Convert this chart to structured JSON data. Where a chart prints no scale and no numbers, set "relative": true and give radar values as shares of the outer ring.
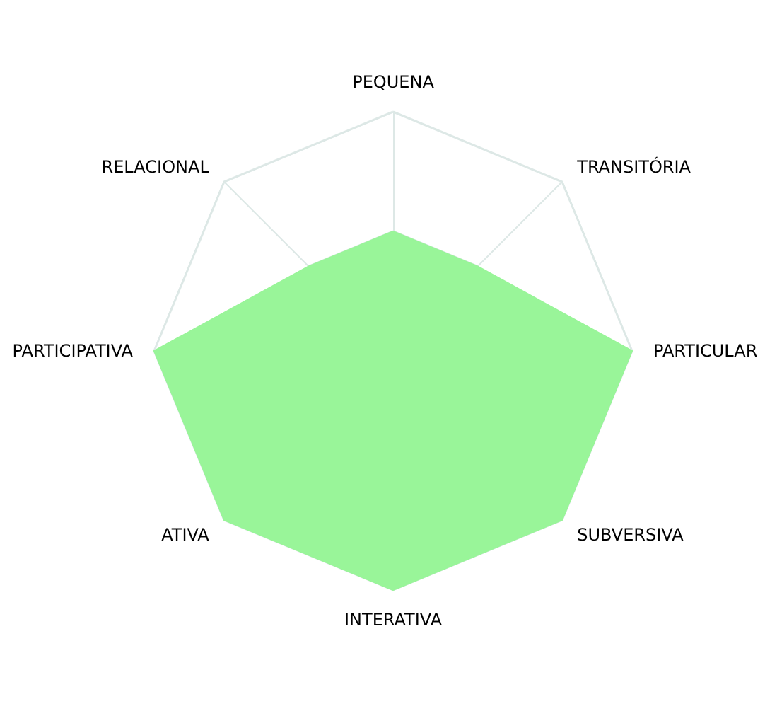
{
  "chart_data": {
    "type": "radar",
    "relative": true,
    "categories": [
      "PEQUENA",
      "TRANSITÓRIA",
      "PARTICULAR",
      "SUBVERSIVA",
      "INTERATIVA",
      "ATIVA",
      "PARTICIPATIVA",
      "RELACIONAL"
    ],
    "series": [
      {
        "color": "#99f599",
        "values": [
          0.5,
          0.5,
          1,
          1,
          1,
          1,
          1,
          0.5
        ]
      }
    ]
  }
}
